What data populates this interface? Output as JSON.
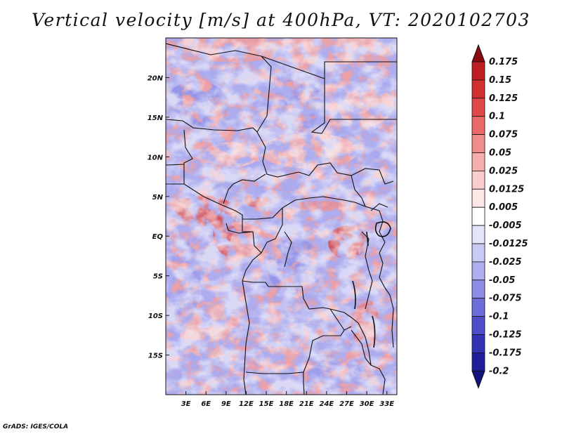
{
  "title": "Vertical velocity [m/s] at 400hPa, VT: 2020102703",
  "credit": "GrADS: IGES/COLA",
  "chart_data": {
    "type": "heatmap",
    "title": "Vertical velocity [m/s] at 400hPa, VT: 2020102703",
    "variable": "Vertical velocity",
    "units": "m/s",
    "level": "400hPa",
    "valid_time": "2020102703",
    "lon_range": [
      0,
      34.5
    ],
    "lat_range": [
      -20,
      25
    ],
    "x_ticks": [
      {
        "value": 3,
        "label": "3E"
      },
      {
        "value": 6,
        "label": "6E"
      },
      {
        "value": 9,
        "label": "9E"
      },
      {
        "value": 12,
        "label": "12E"
      },
      {
        "value": 15,
        "label": "15E"
      },
      {
        "value": 18,
        "label": "18E"
      },
      {
        "value": 21,
        "label": "21E"
      },
      {
        "value": 24,
        "label": "24E"
      },
      {
        "value": 27,
        "label": "27E"
      },
      {
        "value": 30,
        "label": "30E"
      },
      {
        "value": 33,
        "label": "33E"
      }
    ],
    "y_ticks": [
      {
        "value": 20,
        "label": "20N"
      },
      {
        "value": 15,
        "label": "15N"
      },
      {
        "value": 10,
        "label": "10N"
      },
      {
        "value": 5,
        "label": "5N"
      },
      {
        "value": 0,
        "label": "EQ"
      },
      {
        "value": -5,
        "label": "5S"
      },
      {
        "value": -10,
        "label": "10S"
      },
      {
        "value": -15,
        "label": "15S"
      }
    ],
    "colorbar": {
      "levels": [
        {
          "label": "0.175",
          "color": "#a50f15"
        },
        {
          "label": "0.15",
          "color": "#bd1e23"
        },
        {
          "label": "0.125",
          "color": "#d03030"
        },
        {
          "label": "0.1",
          "color": "#e04848"
        },
        {
          "label": "0.075",
          "color": "#ea6a6a"
        },
        {
          "label": "0.05",
          "color": "#f28c8c"
        },
        {
          "label": "0.025",
          "color": "#f7aeae"
        },
        {
          "label": "0.0125",
          "color": "#fbcccc"
        },
        {
          "label": "0.005",
          "color": "#fde6e6"
        },
        {
          "label": "-0.005",
          "color": "#ffffff"
        },
        {
          "label": "-0.0125",
          "color": "#e4e4fb"
        },
        {
          "label": "-0.025",
          "color": "#c9c9f6"
        },
        {
          "label": "-0.05",
          "color": "#aeaef0"
        },
        {
          "label": "-0.075",
          "color": "#8d8de8"
        },
        {
          "label": "-0.1",
          "color": "#6d6ddc"
        },
        {
          "label": "-0.125",
          "color": "#4e4ecc"
        },
        {
          "label": "-0.175",
          "color": "#3232b4"
        },
        {
          "label": "-0.2",
          "color": "#1e1e9a"
        }
      ],
      "top_cap_color": "#8a0a10",
      "bottom_cap_color": "#12127f"
    },
    "field_summary": {
      "background_color": "#a8a8ee",
      "notable_ascent_regions": [
        "Gulf of Guinea coast (~5N, 4-10E)",
        "Gabon/Cameroon (~0-2N, 9-12E)",
        "East DRC / Great Lakes (~1S, 27-30E)",
        "Northern Sahara band (~22-24N)"
      ]
    }
  }
}
